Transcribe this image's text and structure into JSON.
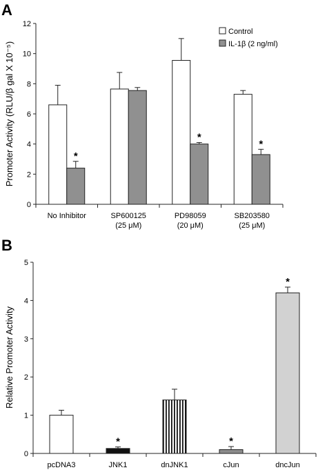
{
  "chart_data": [
    {
      "type": "bar",
      "panel_label": "A",
      "ylabel": "Promoter Activity (RLU/β gal X 10⁻⁵)",
      "ylim": [
        0,
        12
      ],
      "yticks": [
        "0",
        "2",
        "4",
        "6",
        "8",
        "10",
        "12"
      ],
      "categories": [
        [
          "No Inhibitor"
        ],
        [
          "SP600125",
          "(25 μM)"
        ],
        [
          "PD98059",
          "(20 μM)"
        ],
        [
          "SB203580",
          "(25 μM)"
        ]
      ],
      "series": [
        {
          "name": "Control",
          "color": "#ffffff",
          "values": [
            6.6,
            7.65,
            9.55,
            7.3
          ],
          "errors": [
            1.3,
            1.1,
            1.45,
            0.25
          ]
        },
        {
          "name": "IL-1β (2 ng/ml)",
          "color": "#909090",
          "values": [
            2.4,
            7.55,
            4.0,
            3.3
          ],
          "errors": [
            0.45,
            0.2,
            0.1,
            0.35
          ]
        }
      ],
      "significance_marker": "*",
      "significant": [
        [
          false,
          true
        ],
        [
          false,
          false
        ],
        [
          false,
          true
        ],
        [
          false,
          true
        ]
      ],
      "legend_position": "top-right",
      "grid": false
    },
    {
      "type": "bar",
      "panel_label": "B",
      "ylabel": "Relative Promoter Activity",
      "ylim": [
        0,
        5
      ],
      "yticks": [
        "0",
        "1",
        "2",
        "3",
        "4",
        "5"
      ],
      "categories": [
        "pcDNA3",
        "JNK1",
        "dnJNK1",
        "cJun",
        "dncJun"
      ],
      "values": [
        1.0,
        0.13,
        1.4,
        0.1,
        4.2
      ],
      "errors": [
        0.13,
        0.04,
        0.28,
        0.08,
        0.15
      ],
      "fills": [
        "white",
        "black",
        "vertical-stripes",
        "gray",
        "light-gray"
      ],
      "significance_marker": "*",
      "significant": [
        false,
        true,
        false,
        true,
        true
      ],
      "grid": false
    }
  ]
}
